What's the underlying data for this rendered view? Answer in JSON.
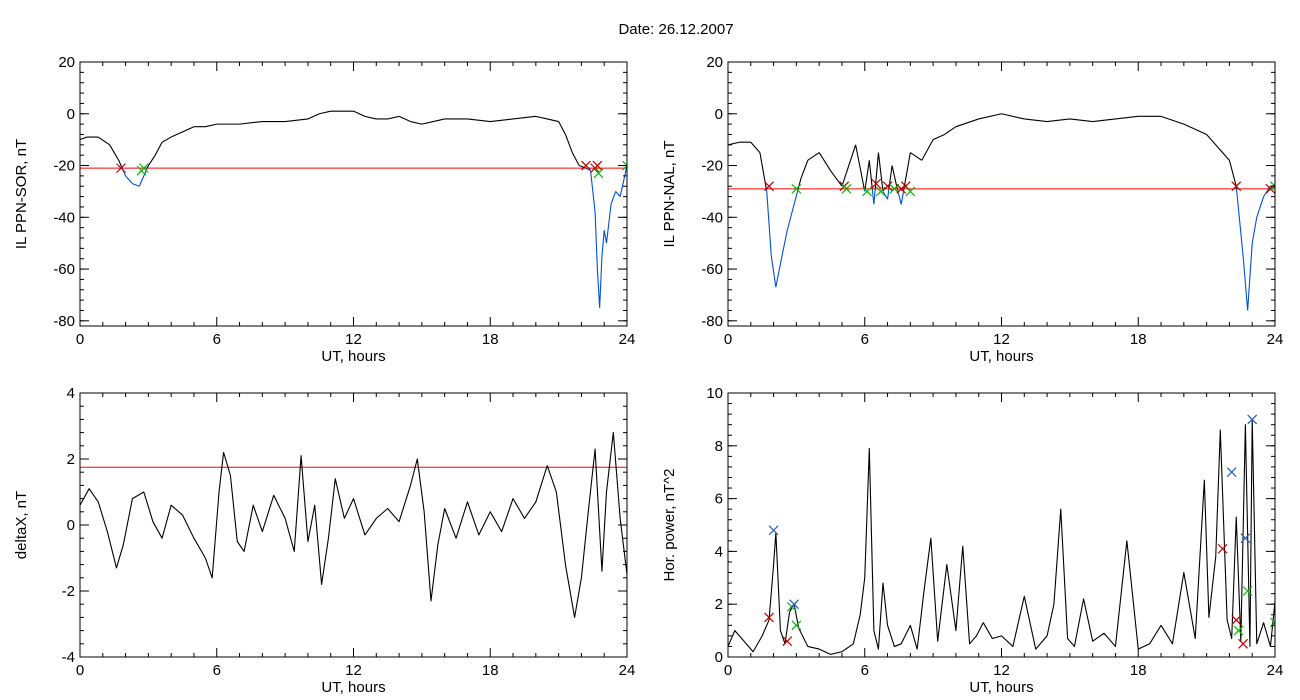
{
  "figure": {
    "title": "Date:  26.12.2007"
  },
  "colors": {
    "line": "#000000",
    "threshold": "#ff0000",
    "below": "#0050d8",
    "red_marker": "#c00000",
    "green_marker": "#00c000",
    "blue_marker": "#2060c0"
  },
  "chart_data": [
    {
      "type": "line",
      "xlabel": "UT, hours",
      "ylabel": "IL PPN-SOR, nT",
      "xlim": [
        0,
        24
      ],
      "ylim": [
        -82,
        20
      ],
      "xticks": [
        0,
        6,
        12,
        18,
        24
      ],
      "yticks": [
        20,
        0,
        -20,
        -40,
        -60,
        -80
      ],
      "threshold": -21,
      "x": [
        0,
        0.3,
        0.8,
        1.3,
        1.7,
        2,
        2.3,
        2.6,
        2.8,
        3,
        3.3,
        3.6,
        4,
        4.5,
        5,
        5.5,
        6,
        7,
        8,
        9,
        10,
        10.5,
        11,
        12,
        12.5,
        13,
        13.5,
        14,
        14.5,
        15,
        15.5,
        16,
        17,
        18,
        19,
        20,
        20.5,
        21,
        21.3,
        21.6,
        21.9,
        22.2,
        22.4,
        22.6,
        22.7,
        22.8,
        22.9,
        23,
        23.1,
        23.3,
        23.5,
        23.7,
        24
      ],
      "y": [
        -10,
        -9,
        -9,
        -12,
        -18,
        -24,
        -27,
        -28,
        -24,
        -20,
        -16,
        -11,
        -9,
        -7,
        -5,
        -5,
        -4,
        -4,
        -3,
        -3,
        -2,
        0,
        1,
        1,
        -1,
        -2,
        -2,
        -1,
        -3,
        -4,
        -3,
        -2,
        -2,
        -3,
        -2,
        -1,
        -2,
        -3,
        -8,
        -15,
        -20,
        -21,
        -22,
        -38,
        -60,
        -75,
        -55,
        -45,
        -50,
        -35,
        -30,
        -32,
        -20
      ],
      "markers": [
        {
          "x": 1.8,
          "y": -21,
          "color": "red"
        },
        {
          "x": 2.7,
          "y": -22,
          "color": "green"
        },
        {
          "x": 2.8,
          "y": -21,
          "color": "green"
        },
        {
          "x": 22.2,
          "y": -20,
          "color": "red"
        },
        {
          "x": 22.6,
          "y": -21,
          "color": "red"
        },
        {
          "x": 22.7,
          "y": -20,
          "color": "red"
        },
        {
          "x": 22.75,
          "y": -23,
          "color": "green"
        },
        {
          "x": 24,
          "y": -20,
          "color": "green"
        }
      ]
    },
    {
      "type": "line",
      "xlabel": "UT, hours",
      "ylabel": "IL PPN-NAL, nT",
      "xlim": [
        0,
        24
      ],
      "ylim": [
        -82,
        20
      ],
      "xticks": [
        0,
        6,
        12,
        18,
        24
      ],
      "yticks": [
        20,
        0,
        -20,
        -40,
        -60,
        -80
      ],
      "threshold": -29,
      "x": [
        0,
        0.5,
        1,
        1.4,
        1.7,
        1.9,
        2.1,
        2.3,
        2.6,
        2.9,
        3.2,
        3.5,
        4,
        4.5,
        5,
        5.3,
        5.6,
        6,
        6.2,
        6.4,
        6.6,
        6.8,
        7,
        7.2,
        7.4,
        7.6,
        7.8,
        8,
        8.5,
        9,
        9.5,
        10,
        11,
        12,
        13,
        14,
        15,
        16,
        17,
        18,
        19,
        20,
        21,
        22,
        22.3,
        22.6,
        22.8,
        23,
        23.2,
        23.5,
        23.8,
        24
      ],
      "y": [
        -12,
        -11,
        -11,
        -15,
        -30,
        -55,
        -67,
        -58,
        -45,
        -35,
        -25,
        -18,
        -15,
        -22,
        -28,
        -20,
        -12,
        -30,
        -18,
        -35,
        -15,
        -30,
        -33,
        -20,
        -28,
        -35,
        -25,
        -15,
        -18,
        -10,
        -8,
        -5,
        -2,
        0,
        -2,
        -3,
        -2,
        -3,
        -2,
        -1,
        -1,
        -4,
        -8,
        -18,
        -28,
        -55,
        -76,
        -50,
        -40,
        -32,
        -28,
        -28
      ],
      "markers": [
        {
          "x": 1.8,
          "y": -28,
          "color": "red"
        },
        {
          "x": 3.0,
          "y": -29,
          "color": "green"
        },
        {
          "x": 5.1,
          "y": -28,
          "color": "red"
        },
        {
          "x": 5.2,
          "y": -29,
          "color": "green"
        },
        {
          "x": 6.1,
          "y": -30,
          "color": "green"
        },
        {
          "x": 6.5,
          "y": -27,
          "color": "red"
        },
        {
          "x": 6.7,
          "y": -30,
          "color": "green"
        },
        {
          "x": 7.0,
          "y": -28,
          "color": "red"
        },
        {
          "x": 7.3,
          "y": -29,
          "color": "green"
        },
        {
          "x": 7.6,
          "y": -29,
          "color": "red"
        },
        {
          "x": 7.8,
          "y": -28,
          "color": "red"
        },
        {
          "x": 8.0,
          "y": -30,
          "color": "green"
        },
        {
          "x": 22.3,
          "y": -28,
          "color": "red"
        },
        {
          "x": 23.8,
          "y": -29,
          "color": "red"
        },
        {
          "x": 24,
          "y": -28,
          "color": "green"
        }
      ]
    },
    {
      "type": "line",
      "xlabel": "UT, hours",
      "ylabel": "deltaX, nT",
      "xlim": [
        0,
        24
      ],
      "ylim": [
        -4,
        4
      ],
      "xticks": [
        0,
        6,
        12,
        18,
        24
      ],
      "yticks": [
        4,
        2,
        0,
        -2,
        -4
      ],
      "threshold": 1.75,
      "x": [
        0,
        0.4,
        0.8,
        1.2,
        1.6,
        1.9,
        2.3,
        2.8,
        3.2,
        3.6,
        4,
        4.5,
        5,
        5.5,
        5.8,
        6.1,
        6.3,
        6.6,
        6.9,
        7.2,
        7.6,
        8,
        8.5,
        9,
        9.4,
        9.7,
        10,
        10.3,
        10.6,
        10.9,
        11.2,
        11.6,
        12,
        12.5,
        13,
        13.5,
        14,
        14.5,
        14.8,
        15.1,
        15.4,
        15.7,
        16,
        16.5,
        17,
        17.5,
        18,
        18.5,
        19,
        19.5,
        20,
        20.5,
        20.9,
        21.3,
        21.7,
        22,
        22.3,
        22.6,
        22.9,
        23.1,
        23.4,
        23.7,
        24
      ],
      "y": [
        0.6,
        1.1,
        0.7,
        -0.2,
        -1.3,
        -0.6,
        0.8,
        1.0,
        0.1,
        -0.4,
        0.6,
        0.3,
        -0.4,
        -1.0,
        -1.6,
        1.0,
        2.2,
        1.5,
        -0.5,
        -0.8,
        0.6,
        -0.2,
        0.9,
        0.2,
        -0.8,
        2.1,
        -0.5,
        0.6,
        -1.8,
        -0.4,
        1.4,
        0.2,
        0.8,
        -0.3,
        0.2,
        0.5,
        0.1,
        1.2,
        2.0,
        0.4,
        -2.3,
        -0.6,
        0.5,
        -0.4,
        0.7,
        -0.3,
        0.4,
        -0.2,
        0.8,
        0.2,
        0.7,
        1.8,
        1.0,
        -1.2,
        -2.8,
        -1.6,
        0.4,
        2.3,
        -1.4,
        1.0,
        2.8,
        0.2,
        -1.5
      ],
      "markers": []
    },
    {
      "type": "line",
      "xlabel": "UT, hours",
      "ylabel": "Hor. power, nT^2",
      "xlim": [
        0,
        24
      ],
      "ylim": [
        0,
        10
      ],
      "xticks": [
        0,
        6,
        12,
        18,
        24
      ],
      "yticks": [
        10,
        8,
        6,
        4,
        2,
        0
      ],
      "x": [
        0,
        0.3,
        0.7,
        1.1,
        1.5,
        1.8,
        2.0,
        2.1,
        2.3,
        2.5,
        2.7,
        2.9,
        3.1,
        3.5,
        4,
        4.5,
        5,
        5.5,
        5.8,
        6.0,
        6.2,
        6.4,
        6.6,
        6.8,
        7.0,
        7.3,
        7.6,
        8,
        8.3,
        8.6,
        8.9,
        9.2,
        9.6,
        10,
        10.3,
        10.6,
        10.9,
        11.2,
        11.6,
        12,
        12.5,
        13,
        13.5,
        14,
        14.3,
        14.6,
        14.9,
        15.2,
        15.6,
        16,
        16.5,
        17,
        17.5,
        18,
        18.5,
        19,
        19.5,
        20,
        20.5,
        20.9,
        21.1,
        21.4,
        21.6,
        21.9,
        22.1,
        22.3,
        22.5,
        22.7,
        22.9,
        23.0,
        23.2,
        23.5,
        23.8,
        24
      ],
      "y": [
        0.4,
        1.0,
        0.6,
        0.2,
        0.8,
        1.4,
        3.5,
        4.7,
        1.0,
        0.5,
        1.7,
        2.0,
        1.1,
        0.4,
        0.3,
        0.1,
        0.2,
        0.5,
        1.6,
        3.0,
        7.9,
        1.0,
        0.3,
        2.8,
        1.2,
        0.4,
        0.5,
        1.2,
        0.3,
        2.5,
        4.5,
        0.6,
        3.5,
        1.0,
        4.2,
        0.5,
        0.8,
        1.3,
        0.7,
        0.8,
        0.4,
        2.3,
        0.3,
        0.8,
        2.0,
        5.6,
        0.7,
        0.4,
        2.2,
        0.6,
        0.9,
        0.4,
        4.4,
        0.3,
        0.5,
        1.2,
        0.5,
        3.2,
        0.7,
        6.7,
        1.5,
        3.8,
        8.6,
        1.4,
        0.7,
        5.3,
        0.6,
        8.8,
        0.4,
        9.0,
        0.5,
        1.3,
        0.4,
        2.1
      ],
      "markers": [
        {
          "x": 1.8,
          "y": 1.5,
          "color": "red"
        },
        {
          "x": 2.0,
          "y": 4.8,
          "color": "blue"
        },
        {
          "x": 2.6,
          "y": 0.6,
          "color": "red"
        },
        {
          "x": 2.8,
          "y": 1.9,
          "color": "green"
        },
        {
          "x": 2.9,
          "y": 2.0,
          "color": "blue"
        },
        {
          "x": 3.0,
          "y": 1.2,
          "color": "green"
        },
        {
          "x": 21.7,
          "y": 4.1,
          "color": "red"
        },
        {
          "x": 22.1,
          "y": 7.0,
          "color": "blue"
        },
        {
          "x": 22.3,
          "y": 1.4,
          "color": "red"
        },
        {
          "x": 22.4,
          "y": 1.0,
          "color": "green"
        },
        {
          "x": 22.6,
          "y": 0.5,
          "color": "red"
        },
        {
          "x": 22.7,
          "y": 4.5,
          "color": "blue"
        },
        {
          "x": 22.8,
          "y": 2.5,
          "color": "green"
        },
        {
          "x": 23.0,
          "y": 9.0,
          "color": "blue"
        },
        {
          "x": 24,
          "y": 1.3,
          "color": "green"
        }
      ]
    }
  ]
}
